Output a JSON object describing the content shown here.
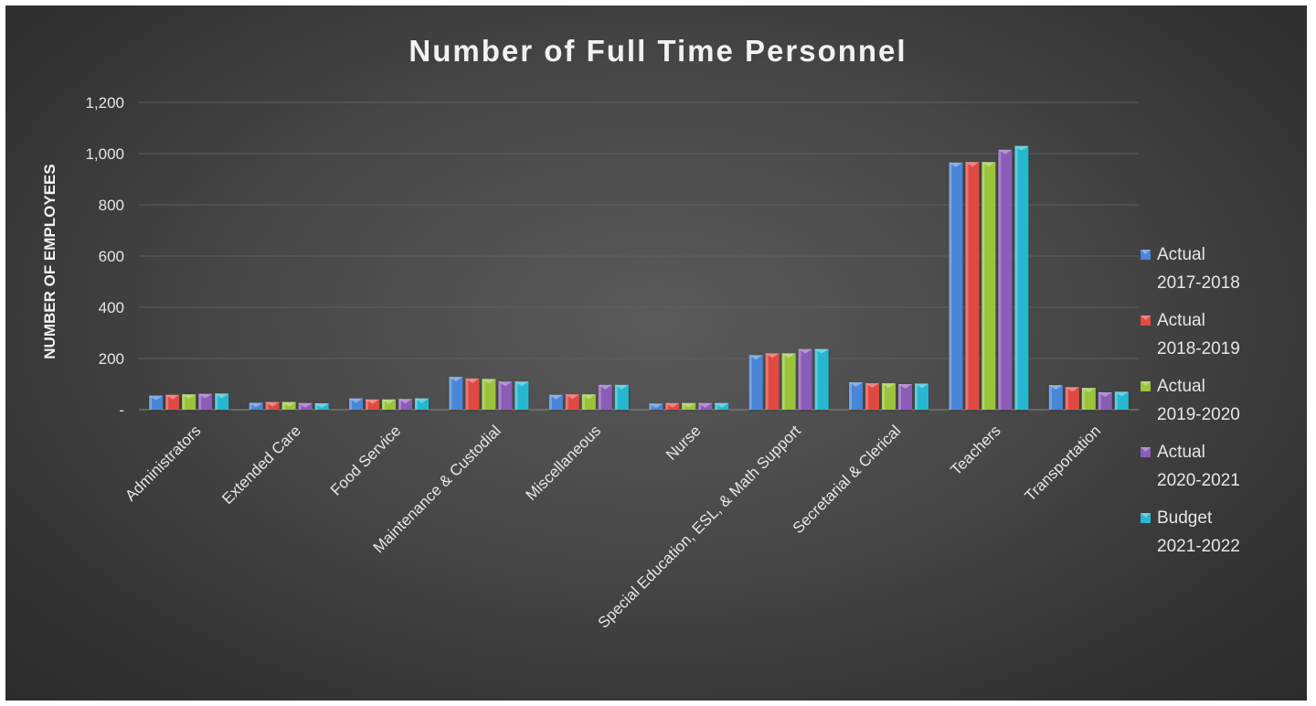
{
  "chart_data": {
    "type": "bar",
    "title": "Number of Full Time Personnel",
    "ylabel": "NUMBER OF EMPLOYEES",
    "xlabel": "",
    "ylim": [
      0,
      1200
    ],
    "yticks": [
      {
        "value": 0,
        "label": "-"
      },
      {
        "value": 200,
        "label": "200"
      },
      {
        "value": 400,
        "label": "400"
      },
      {
        "value": 600,
        "label": "600"
      },
      {
        "value": 800,
        "label": "800"
      },
      {
        "value": 1000,
        "label": "1,000"
      },
      {
        "value": 1200,
        "label": "1,200"
      }
    ],
    "grid": true,
    "legend_position": "right",
    "categories": [
      "Administrators",
      "Extended Care",
      "Food Service",
      "Maintenance & Custodial",
      "Miscellaneous",
      "Nurse",
      "Special Education, ESL, & Math Support",
      "Secretarial & Clerical",
      "Teachers",
      "Transportation"
    ],
    "series": [
      {
        "name": "Actual 2017-2018",
        "legend_lines": [
          "Actual",
          "2017-2018"
        ],
        "color": "#4a86d6",
        "values": [
          55,
          27,
          44,
          128,
          58,
          24,
          213,
          107,
          965,
          96
        ]
      },
      {
        "name": "Actual 2018-2019",
        "legend_lines": [
          "Actual",
          "2018-2019"
        ],
        "color": "#e04a43",
        "values": [
          58,
          30,
          40,
          122,
          60,
          26,
          220,
          103,
          967,
          88
        ]
      },
      {
        "name": "Actual 2019-2020",
        "legend_lines": [
          "Actual",
          "2019-2020"
        ],
        "color": "#99c43a",
        "values": [
          60,
          30,
          40,
          120,
          60,
          26,
          220,
          103,
          967,
          85
        ]
      },
      {
        "name": "Actual 2020-2021",
        "legend_lines": [
          "Actual",
          "2020-2021"
        ],
        "color": "#8b5cb8",
        "values": [
          62,
          26,
          42,
          110,
          97,
          26,
          237,
          100,
          1015,
          68
        ]
      },
      {
        "name": "Budget 2021-2022",
        "legend_lines": [
          "Budget",
          "2021-2022"
        ],
        "color": "#28b8d0",
        "values": [
          63,
          25,
          44,
          110,
          97,
          26,
          237,
          102,
          1030,
          70
        ]
      }
    ]
  }
}
